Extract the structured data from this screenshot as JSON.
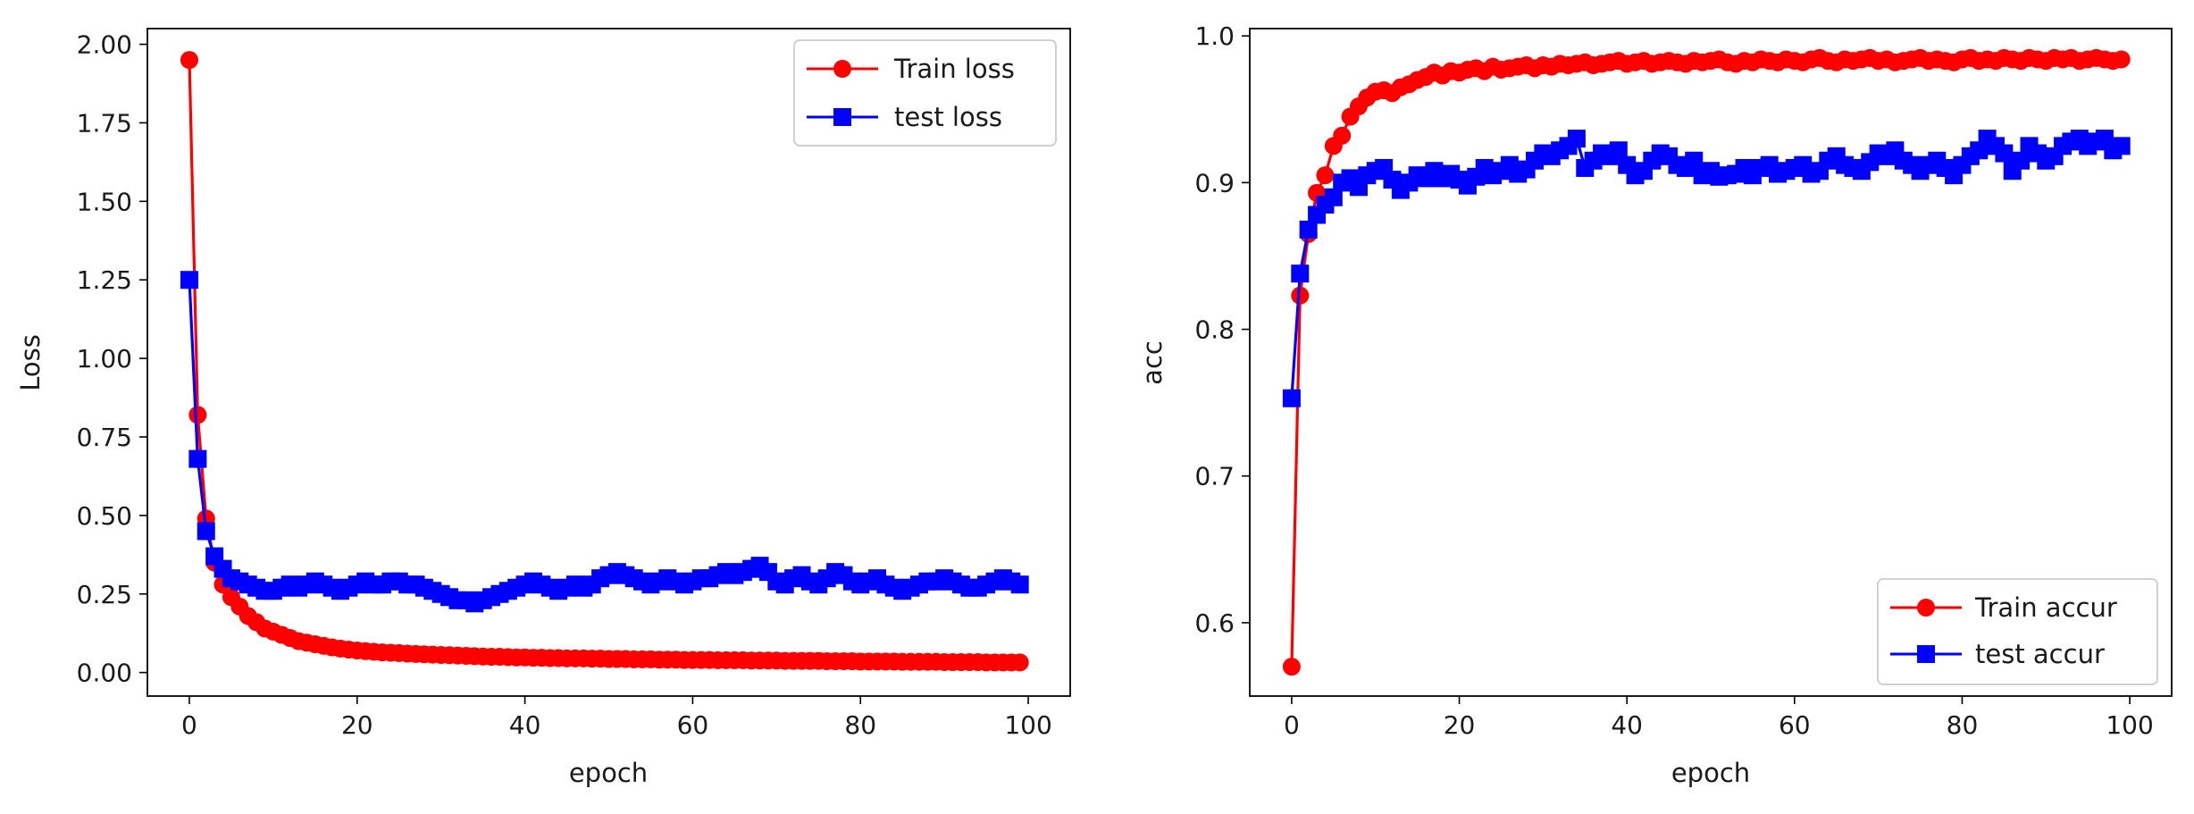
{
  "chart_data": [
    {
      "type": "line",
      "id": "loss",
      "title": "",
      "xlabel": "epoch",
      "ylabel": "Loss",
      "xlim": [
        -5,
        105
      ],
      "ylim": [
        -0.075,
        2.05
      ],
      "xticks": [
        0,
        20,
        40,
        60,
        80,
        100
      ],
      "yticks": [
        0.0,
        0.25,
        0.5,
        0.75,
        1.0,
        1.25,
        1.5,
        1.75,
        2.0
      ],
      "ytick_labels": [
        "0.00",
        "0.25",
        "0.50",
        "0.75",
        "1.00",
        "1.25",
        "1.50",
        "1.75",
        "2.00"
      ],
      "grid": false,
      "legend_position": "upper right",
      "series": [
        {
          "name": "Train loss",
          "color": "#ff0000",
          "marker": "circle",
          "values": [
            1.95,
            0.82,
            0.49,
            0.35,
            0.28,
            0.24,
            0.21,
            0.18,
            0.16,
            0.14,
            0.13,
            0.12,
            0.11,
            0.1,
            0.095,
            0.09,
            0.085,
            0.08,
            0.076,
            0.073,
            0.07,
            0.068,
            0.066,
            0.064,
            0.063,
            0.062,
            0.06,
            0.059,
            0.058,
            0.057,
            0.056,
            0.055,
            0.054,
            0.053,
            0.052,
            0.051,
            0.05,
            0.05,
            0.049,
            0.048,
            0.048,
            0.047,
            0.047,
            0.046,
            0.046,
            0.045,
            0.045,
            0.045,
            0.044,
            0.044,
            0.043,
            0.043,
            0.043,
            0.042,
            0.042,
            0.042,
            0.041,
            0.041,
            0.041,
            0.04,
            0.04,
            0.04,
            0.04,
            0.039,
            0.039,
            0.039,
            0.039,
            0.038,
            0.038,
            0.038,
            0.038,
            0.037,
            0.037,
            0.037,
            0.037,
            0.037,
            0.036,
            0.036,
            0.036,
            0.036,
            0.035,
            0.035,
            0.035,
            0.035,
            0.035,
            0.034,
            0.034,
            0.034,
            0.034,
            0.034,
            0.033,
            0.033,
            0.033,
            0.033,
            0.033,
            0.032,
            0.032,
            0.032,
            0.032,
            0.032
          ]
        },
        {
          "name": "test loss",
          "color": "#0000ff",
          "marker": "square",
          "values": [
            1.25,
            0.68,
            0.45,
            0.37,
            0.33,
            0.3,
            0.29,
            0.28,
            0.27,
            0.26,
            0.26,
            0.27,
            0.28,
            0.27,
            0.28,
            0.29,
            0.28,
            0.27,
            0.26,
            0.27,
            0.28,
            0.29,
            0.28,
            0.28,
            0.29,
            0.29,
            0.28,
            0.28,
            0.27,
            0.26,
            0.25,
            0.24,
            0.23,
            0.23,
            0.22,
            0.23,
            0.24,
            0.25,
            0.26,
            0.27,
            0.28,
            0.29,
            0.28,
            0.27,
            0.26,
            0.27,
            0.28,
            0.27,
            0.28,
            0.3,
            0.31,
            0.32,
            0.31,
            0.3,
            0.29,
            0.28,
            0.29,
            0.3,
            0.29,
            0.28,
            0.29,
            0.3,
            0.3,
            0.31,
            0.32,
            0.31,
            0.32,
            0.33,
            0.34,
            0.32,
            0.29,
            0.28,
            0.3,
            0.31,
            0.29,
            0.28,
            0.3,
            0.32,
            0.31,
            0.29,
            0.28,
            0.29,
            0.3,
            0.28,
            0.27,
            0.26,
            0.27,
            0.28,
            0.29,
            0.29,
            0.3,
            0.29,
            0.28,
            0.27,
            0.27,
            0.28,
            0.29,
            0.3,
            0.29,
            0.28
          ]
        }
      ]
    },
    {
      "type": "line",
      "id": "acc",
      "title": "",
      "xlabel": "epoch",
      "ylabel": "acc",
      "xlim": [
        -5,
        105
      ],
      "ylim": [
        0.55,
        1.005
      ],
      "xticks": [
        0,
        20,
        40,
        60,
        80,
        100
      ],
      "yticks": [
        0.6,
        0.7,
        0.8,
        0.9,
        1.0
      ],
      "ytick_labels": [
        "0.6",
        "0.7",
        "0.8",
        "0.9",
        "1.0"
      ],
      "grid": false,
      "legend_position": "lower right",
      "series": [
        {
          "name": "Train accur",
          "color": "#ff0000",
          "marker": "circle",
          "values": [
            0.57,
            0.823,
            0.865,
            0.893,
            0.905,
            0.925,
            0.932,
            0.945,
            0.952,
            0.958,
            0.962,
            0.963,
            0.961,
            0.965,
            0.967,
            0.97,
            0.972,
            0.975,
            0.973,
            0.976,
            0.975,
            0.977,
            0.978,
            0.976,
            0.979,
            0.977,
            0.978,
            0.979,
            0.98,
            0.978,
            0.98,
            0.979,
            0.981,
            0.98,
            0.981,
            0.982,
            0.98,
            0.981,
            0.982,
            0.983,
            0.981,
            0.982,
            0.983,
            0.981,
            0.982,
            0.983,
            0.982,
            0.981,
            0.983,
            0.982,
            0.983,
            0.984,
            0.982,
            0.981,
            0.983,
            0.982,
            0.984,
            0.983,
            0.982,
            0.984,
            0.983,
            0.982,
            0.984,
            0.985,
            0.983,
            0.982,
            0.984,
            0.983,
            0.984,
            0.985,
            0.983,
            0.984,
            0.982,
            0.983,
            0.984,
            0.985,
            0.983,
            0.984,
            0.983,
            0.982,
            0.984,
            0.985,
            0.983,
            0.984,
            0.983,
            0.985,
            0.984,
            0.983,
            0.985,
            0.984,
            0.983,
            0.985,
            0.984,
            0.985,
            0.983,
            0.984,
            0.985,
            0.984,
            0.983,
            0.984
          ]
        },
        {
          "name": "test accur",
          "color": "#0000ff",
          "marker": "square",
          "values": [
            0.753,
            0.838,
            0.868,
            0.878,
            0.885,
            0.89,
            0.9,
            0.903,
            0.897,
            0.905,
            0.908,
            0.91,
            0.902,
            0.895,
            0.9,
            0.905,
            0.903,
            0.908,
            0.903,
            0.906,
            0.902,
            0.898,
            0.904,
            0.91,
            0.905,
            0.908,
            0.912,
            0.906,
            0.909,
            0.915,
            0.92,
            0.918,
            0.922,
            0.925,
            0.93,
            0.91,
            0.915,
            0.92,
            0.918,
            0.922,
            0.912,
            0.905,
            0.908,
            0.915,
            0.92,
            0.918,
            0.912,
            0.91,
            0.915,
            0.905,
            0.908,
            0.904,
            0.905,
            0.906,
            0.91,
            0.905,
            0.91,
            0.912,
            0.906,
            0.908,
            0.91,
            0.912,
            0.906,
            0.908,
            0.915,
            0.918,
            0.912,
            0.91,
            0.908,
            0.914,
            0.92,
            0.918,
            0.922,
            0.915,
            0.912,
            0.908,
            0.912,
            0.915,
            0.91,
            0.905,
            0.912,
            0.918,
            0.922,
            0.93,
            0.925,
            0.92,
            0.908,
            0.915,
            0.925,
            0.92,
            0.915,
            0.918,
            0.925,
            0.928,
            0.93,
            0.925,
            0.928,
            0.93,
            0.922,
            0.925
          ]
        }
      ]
    }
  ]
}
